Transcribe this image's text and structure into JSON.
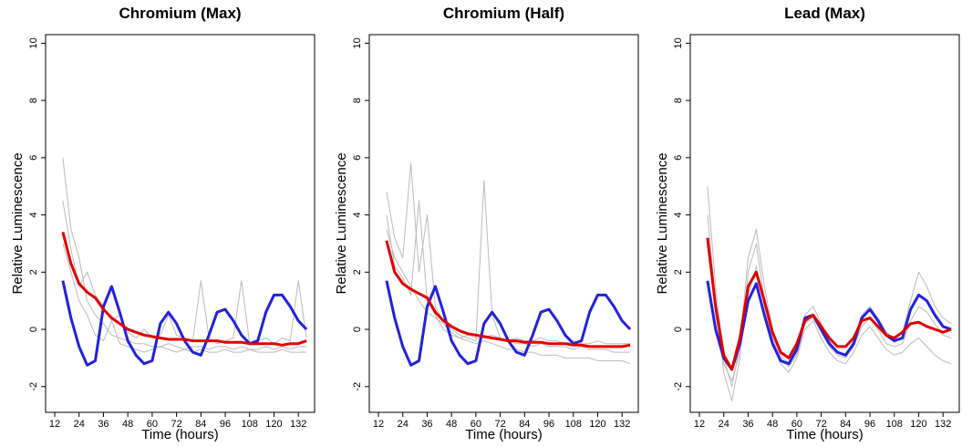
{
  "chart_data": [
    {
      "type": "line",
      "title": "Chromium (Max)",
      "xlabel": "Time (hours)",
      "ylabel": "Relative Luminescence",
      "x": [
        16,
        20,
        24,
        28,
        32,
        36,
        40,
        44,
        48,
        52,
        56,
        60,
        64,
        68,
        72,
        76,
        80,
        84,
        88,
        92,
        96,
        100,
        104,
        108,
        112,
        116,
        120,
        124,
        128,
        132,
        136
      ],
      "xlim": [
        7.5,
        140
      ],
      "ylim": [
        -2.9,
        10.3
      ],
      "xticks": [
        12,
        24,
        36,
        48,
        60,
        72,
        84,
        96,
        108,
        120,
        132
      ],
      "yticks": [
        -2,
        0,
        2,
        4,
        6,
        8,
        10
      ],
      "series": [
        {
          "color": "#bbbbbb",
          "width": 1,
          "values": [
            6.0,
            3.5,
            2.5,
            1.0,
            0.5,
            0.2,
            -0.2,
            -0.3,
            -0.4,
            -0.5,
            -0.5,
            -0.6,
            -0.6,
            -0.5,
            -0.6,
            -0.7,
            -0.6,
            -0.6,
            -0.7,
            -0.6,
            -0.6,
            -0.7,
            -0.6,
            -0.7,
            -0.7,
            -0.6,
            -0.7,
            -0.6,
            -0.7,
            -0.6,
            -0.6
          ]
        },
        {
          "color": "#bbbbbb",
          "width": 1,
          "values": [
            4.5,
            2.8,
            1.5,
            2.0,
            1.2,
            0.8,
            0.3,
            0.5,
            -0.1,
            -0.3,
            0,
            -0.3,
            -0.2,
            0.5,
            -0.2,
            -0.3,
            -0.4,
            1.7,
            -0.3,
            -0.5,
            -0.4,
            -0.3,
            1.7,
            -0.5,
            -0.4,
            -0.3,
            -0.5,
            -0.3,
            -0.4,
            1.7,
            -0.3
          ]
        },
        {
          "color": "#bbbbbb",
          "width": 1,
          "values": [
            3.0,
            2.0,
            1.0,
            0.5,
            -0.2,
            -0.4,
            0.3,
            -0.5,
            -0.6,
            -0.7,
            -0.8,
            -0.7,
            -0.6,
            -0.7,
            -0.8,
            -0.7,
            -0.8,
            -0.7,
            -0.8,
            -0.8,
            -0.7,
            -0.8,
            -0.8,
            -0.7,
            -0.8,
            -0.8,
            -0.8,
            -0.7,
            -0.8,
            -0.8,
            -0.8
          ]
        },
        {
          "color": "#2222dd",
          "width": 3,
          "values": [
            1.7,
            0.4,
            -0.6,
            -1.25,
            -1.1,
            0.8,
            1.5,
            0.6,
            -0.4,
            -0.9,
            -1.2,
            -1.1,
            0.2,
            0.6,
            0.2,
            -0.4,
            -0.8,
            -0.9,
            -0.2,
            0.6,
            0.7,
            0.3,
            -0.2,
            -0.5,
            -0.4,
            0.6,
            1.2,
            1.2,
            0.8,
            0.3,
            0
          ]
        },
        {
          "color": "#e00000",
          "width": 3,
          "values": [
            3.4,
            2.3,
            1.6,
            1.3,
            1.1,
            0.7,
            0.4,
            0.2,
            0,
            -0.1,
            -0.2,
            -0.25,
            -0.3,
            -0.35,
            -0.35,
            -0.35,
            -0.4,
            -0.4,
            -0.4,
            -0.4,
            -0.45,
            -0.45,
            -0.45,
            -0.5,
            -0.5,
            -0.5,
            -0.5,
            -0.55,
            -0.5,
            -0.5,
            -0.4
          ]
        }
      ]
    },
    {
      "type": "line",
      "title": "Chromium (Half)",
      "xlabel": "Time (hours)",
      "ylabel": "Relative Luminescence",
      "x": [
        16,
        20,
        24,
        28,
        32,
        36,
        40,
        44,
        48,
        52,
        56,
        60,
        64,
        68,
        72,
        76,
        80,
        84,
        88,
        92,
        96,
        100,
        104,
        108,
        112,
        116,
        120,
        124,
        128,
        132,
        136
      ],
      "xlim": [
        7.5,
        140
      ],
      "ylim": [
        -2.9,
        10.3
      ],
      "xticks": [
        12,
        24,
        36,
        48,
        60,
        72,
        84,
        96,
        108,
        120,
        132
      ],
      "yticks": [
        -2,
        0,
        2,
        4,
        6,
        8,
        10
      ],
      "series": [
        {
          "color": "#bbbbbb",
          "width": 1,
          "values": [
            4.8,
            3.2,
            2.5,
            5.8,
            2.0,
            4.0,
            0.8,
            0.3,
            0.0,
            -0.2,
            -0.3,
            -0.4,
            5.2,
            0.5,
            -0.3,
            -0.4,
            -0.5,
            -0.5,
            -0.6,
            -0.5,
            -0.6,
            -0.6,
            -0.6,
            -0.7,
            -0.6,
            -0.7,
            -0.7,
            -0.7,
            -0.8,
            -0.8,
            -0.8
          ]
        },
        {
          "color": "#bbbbbb",
          "width": 1,
          "values": [
            3.5,
            2.5,
            2.0,
            1.5,
            1.0,
            0.6,
            0.4,
            0.2,
            -0.1,
            -0.3,
            -0.4,
            -0.5,
            -0.4,
            -0.5,
            -0.6,
            -0.7,
            -0.7,
            -0.8,
            -0.8,
            -0.9,
            -0.9,
            -0.9,
            -1.0,
            -1.0,
            -1.0,
            -1.0,
            -1.1,
            -1.1,
            -1.1,
            -1.1,
            -1.2
          ]
        },
        {
          "color": "#bbbbbb",
          "width": 1,
          "values": [
            4.0,
            2.2,
            1.8,
            1.2,
            4.5,
            1.0,
            0.5,
            0.0,
            -0.2,
            -0.3,
            -0.2,
            -0.3,
            -0.3,
            -0.2,
            -0.3,
            -0.4,
            -0.3,
            -0.4,
            -0.4,
            -0.3,
            -0.4,
            -0.4,
            -0.5,
            -0.4,
            -0.5,
            -0.5,
            -0.4,
            -0.5,
            -0.5,
            -0.5,
            -0.5
          ]
        },
        {
          "color": "#2222dd",
          "width": 3,
          "values": [
            1.7,
            0.4,
            -0.6,
            -1.25,
            -1.1,
            0.8,
            1.5,
            0.6,
            -0.4,
            -0.9,
            -1.2,
            -1.1,
            0.2,
            0.6,
            0.2,
            -0.4,
            -0.8,
            -0.9,
            -0.2,
            0.6,
            0.7,
            0.3,
            -0.2,
            -0.5,
            -0.4,
            0.6,
            1.2,
            1.2,
            0.8,
            0.3,
            0
          ]
        },
        {
          "color": "#e00000",
          "width": 3,
          "values": [
            3.1,
            2.0,
            1.6,
            1.4,
            1.25,
            1.1,
            0.6,
            0.3,
            0.1,
            -0.05,
            -0.15,
            -0.2,
            -0.25,
            -0.3,
            -0.35,
            -0.4,
            -0.4,
            -0.45,
            -0.45,
            -0.45,
            -0.5,
            -0.5,
            -0.5,
            -0.55,
            -0.55,
            -0.6,
            -0.6,
            -0.6,
            -0.6,
            -0.6,
            -0.55
          ]
        }
      ]
    },
    {
      "type": "line",
      "title": "Lead (Max)",
      "xlabel": "Time (hours)",
      "ylabel": "Relative Luminescence",
      "x": [
        16,
        20,
        24,
        28,
        32,
        36,
        40,
        44,
        48,
        52,
        56,
        60,
        64,
        68,
        72,
        76,
        80,
        84,
        88,
        92,
        96,
        100,
        104,
        108,
        112,
        116,
        120,
        124,
        128,
        132,
        136
      ],
      "xlim": [
        7.5,
        140
      ],
      "ylim": [
        -2.9,
        10.3
      ],
      "xticks": [
        12,
        24,
        36,
        48,
        60,
        72,
        84,
        96,
        108,
        120,
        132
      ],
      "yticks": [
        -2,
        0,
        2,
        4,
        6,
        8,
        10
      ],
      "series": [
        {
          "color": "#bbbbbb",
          "width": 1,
          "values": [
            5.0,
            1.5,
            -1.0,
            -2.0,
            -0.5,
            2.5,
            3.5,
            1.5,
            0.0,
            -0.9,
            -1.2,
            -0.8,
            0.5,
            0.8,
            0.2,
            -0.4,
            -0.8,
            -0.9,
            -0.4,
            0.5,
            0.8,
            0.4,
            -0.1,
            -0.3,
            -0.1,
            1.0,
            2.0,
            1.5,
            0.8,
            0.4,
            0.2
          ]
        },
        {
          "color": "#bbbbbb",
          "width": 1,
          "values": [
            4.0,
            1.0,
            -1.5,
            -2.5,
            -1.0,
            2.0,
            3.0,
            1.0,
            -0.5,
            -1.2,
            -1.5,
            -1.0,
            0.0,
            0.3,
            -0.3,
            -0.8,
            -1.1,
            -1.2,
            -0.8,
            -0.2,
            0.1,
            -0.3,
            -0.7,
            -0.9,
            -0.8,
            -0.5,
            -0.3,
            -0.6,
            -0.9,
            -1.1,
            -1.2
          ]
        },
        {
          "color": "#bbbbbb",
          "width": 1,
          "values": [
            3.0,
            0.5,
            -1.2,
            -1.8,
            -0.8,
            1.2,
            2.2,
            0.8,
            -0.3,
            -1.0,
            -1.3,
            -0.9,
            0.2,
            0.4,
            -0.1,
            -0.6,
            -0.9,
            -1.0,
            -0.6,
            0.1,
            0.4,
            0.0,
            -0.5,
            -0.6,
            -0.5,
            0.3,
            0.8,
            0.6,
            0.2,
            -0.2,
            -0.3
          ]
        },
        {
          "color": "#2222dd",
          "width": 3,
          "values": [
            1.7,
            0.0,
            -1.0,
            -1.4,
            -0.5,
            1.0,
            1.6,
            0.5,
            -0.5,
            -1.1,
            -1.2,
            -0.7,
            0.4,
            0.5,
            0.0,
            -0.5,
            -0.8,
            -0.9,
            -0.5,
            0.4,
            0.7,
            0.3,
            -0.2,
            -0.4,
            -0.3,
            0.7,
            1.2,
            1.0,
            0.5,
            0.1,
            0
          ]
        },
        {
          "color": "#e00000",
          "width": 3,
          "values": [
            3.2,
            0.8,
            -0.9,
            -1.4,
            -0.3,
            1.5,
            2.0,
            1.0,
            -0.1,
            -0.8,
            -1.0,
            -0.5,
            0.3,
            0.5,
            0.1,
            -0.3,
            -0.6,
            -0.6,
            -0.3,
            0.3,
            0.4,
            0.1,
            -0.2,
            -0.3,
            -0.1,
            0.2,
            0.25,
            0.1,
            0,
            -0.1,
            0
          ]
        }
      ]
    }
  ]
}
